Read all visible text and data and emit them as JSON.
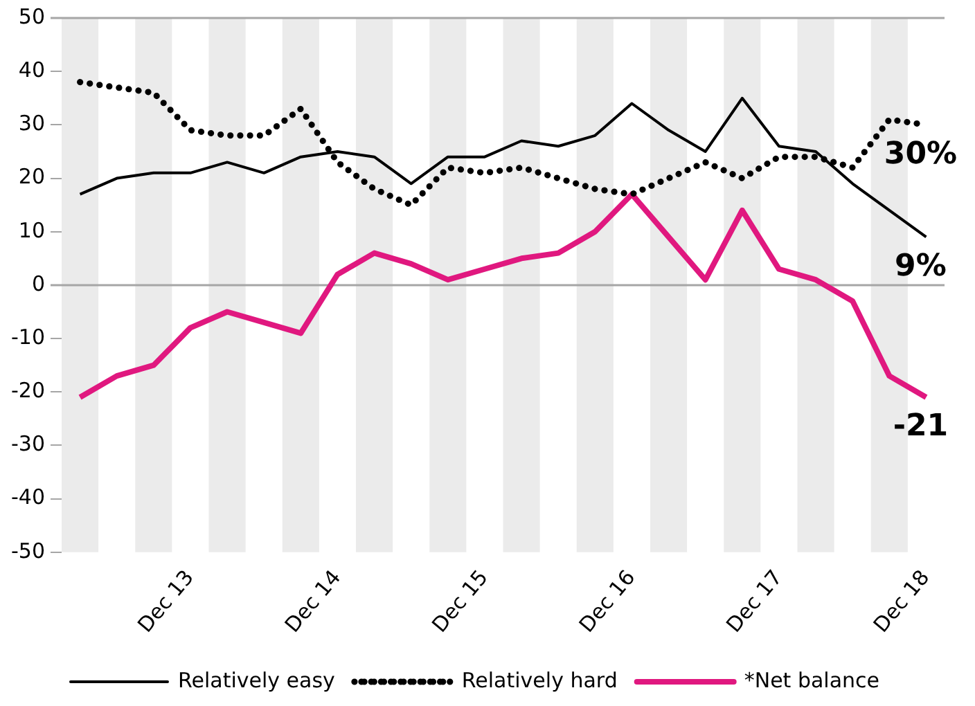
{
  "chart_data": {
    "type": "line",
    "categories": [
      null,
      null,
      null,
      "Dec 13",
      null,
      null,
      null,
      "Dec 14",
      null,
      null,
      null,
      "Dec 15",
      null,
      null,
      null,
      "Dec 16",
      null,
      null,
      null,
      "Dec 17",
      null,
      null,
      null,
      "Dec 18"
    ],
    "series": [
      {
        "name": "Relatively easy",
        "color": "#000000",
        "line_style": "solid",
        "values": [
          17,
          20,
          21,
          21,
          23,
          21,
          24,
          25,
          24,
          19,
          24,
          24,
          27,
          26,
          28,
          34,
          29,
          25,
          35,
          26,
          25,
          19,
          14,
          9
        ]
      },
      {
        "name": "Relatively hard",
        "color": "#000000",
        "line_style": "dotted",
        "values": [
          38,
          37,
          36,
          29,
          28,
          28,
          33,
          23,
          18,
          15,
          22,
          21,
          22,
          20,
          18,
          17,
          20,
          23,
          20,
          24,
          24,
          22,
          31,
          30
        ]
      },
      {
        "name": "*Net balance",
        "color": "#e0187f",
        "line_style": "solid",
        "values": [
          -21,
          -17,
          -15,
          -8,
          -5,
          -7,
          -9,
          2,
          6,
          4,
          1,
          3,
          5,
          6,
          10,
          17,
          9,
          1,
          14,
          3,
          1,
          -3,
          -17,
          -21
        ]
      }
    ],
    "ylim": [
      -50,
      50
    ],
    "yticks": [
      -50,
      -40,
      -30,
      -20,
      -10,
      0,
      10,
      20,
      30,
      40,
      50
    ],
    "grid": false,
    "legend": "bottom",
    "marker": "none",
    "ref_lines": [
      {
        "axis": "y",
        "value": 0,
        "color": "#a6a6a6"
      }
    ],
    "annotations": [
      {
        "text": "30%",
        "x": "Dec 18",
        "y": 30
      },
      {
        "text": "9%",
        "x": "Dec 18",
        "y": 9
      },
      {
        "text": "-21",
        "x": "Dec 18",
        "y": -21
      }
    ]
  }
}
